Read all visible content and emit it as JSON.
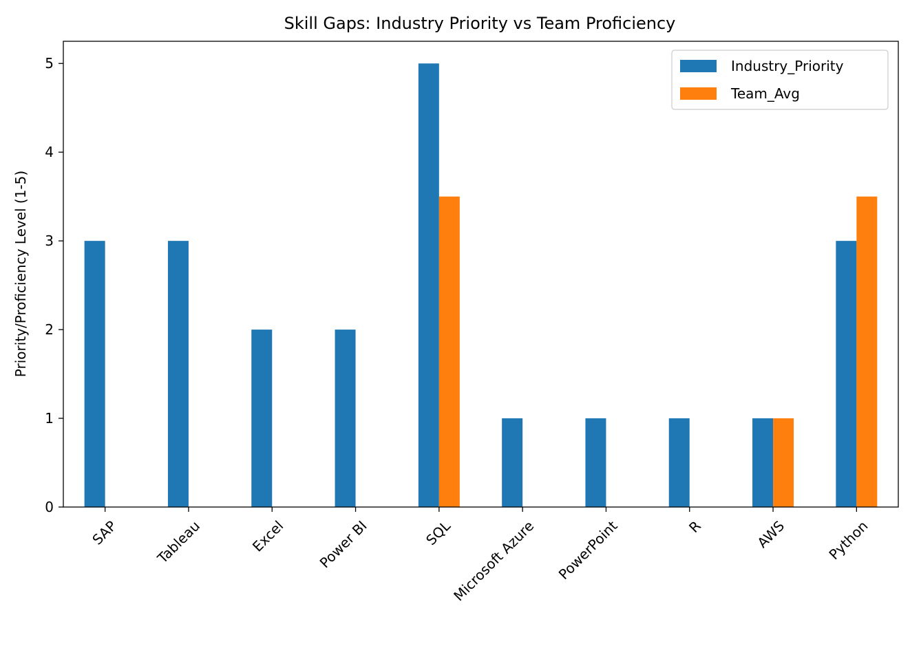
{
  "chart_data": {
    "type": "bar",
    "title": "Skill Gaps: Industry Priority vs Team Proficiency",
    "xlabel": "",
    "ylabel": "Priority/Proficiency Level (1-5)",
    "categories": [
      "SAP",
      "Tableau",
      "Excel",
      "Power BI",
      "SQL",
      "Microsoft Azure",
      "PowerPoint",
      "R",
      "AWS",
      "Python"
    ],
    "series": [
      {
        "name": "Industry_Priority",
        "color": "#1f77b4",
        "values": [
          3,
          3,
          2,
          2,
          5,
          1,
          1,
          1,
          1,
          3
        ]
      },
      {
        "name": "Team_Avg",
        "color": "#ff7f0e",
        "values": [
          0,
          0,
          0,
          0,
          3.5,
          0,
          0,
          0,
          1,
          3.5
        ]
      }
    ],
    "ylim": [
      0,
      5.25
    ],
    "yticks": [
      0,
      1,
      2,
      3,
      4,
      5
    ],
    "grid": false,
    "legend": "top-right"
  }
}
